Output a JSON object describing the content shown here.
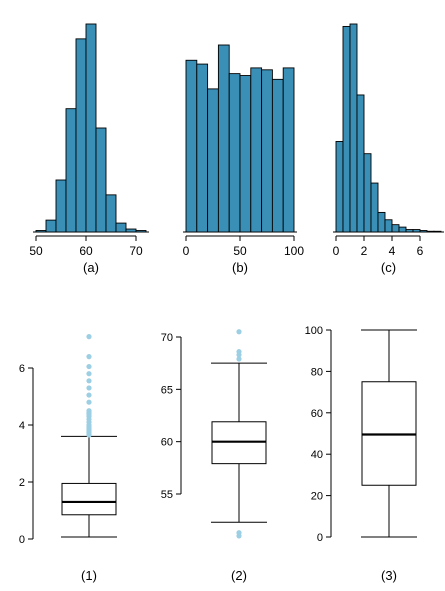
{
  "colors": {
    "bar_fill": "#3a8fb7",
    "bar_stroke": "#000000",
    "outlier": "#9ccfe3",
    "axis": "#000000"
  },
  "chart_data": [
    {
      "type": "bar",
      "subtype": "histogram",
      "panel_label": "(a)",
      "bin_edges": [
        50,
        52,
        54,
        56,
        58,
        60,
        62,
        64,
        66,
        68,
        70,
        72
      ],
      "values": [
        1,
        8,
        35,
        83,
        130,
        140,
        70,
        25,
        6,
        2,
        1
      ],
      "xlim": [
        49,
        73
      ],
      "xticks": [
        "50",
        "60",
        "70"
      ],
      "ylim": [
        0,
        140
      ],
      "grid": false
    },
    {
      "type": "bar",
      "subtype": "histogram",
      "panel_label": "(b)",
      "bin_edges": [
        0,
        10,
        20,
        30,
        40,
        50,
        60,
        70,
        80,
        90,
        100
      ],
      "values": [
        90,
        88,
        75,
        98,
        83,
        82,
        86,
        85,
        80,
        86
      ],
      "xlim": [
        -3,
        103
      ],
      "xticks": [
        "0",
        "50",
        "100"
      ],
      "ylim": [
        0,
        98
      ],
      "grid": false
    },
    {
      "type": "bar",
      "subtype": "histogram",
      "panel_label": "(c)",
      "bin_edges": [
        0,
        0.5,
        1,
        1.5,
        2,
        2.5,
        3,
        3.5,
        4,
        4.5,
        5,
        5.5,
        6,
        6.5,
        7,
        7.5
      ],
      "values": [
        37,
        84,
        85,
        56,
        32,
        20,
        8,
        5,
        3,
        2,
        1,
        1,
        0.6,
        0.3,
        0.3
      ],
      "xlim": [
        -0.3,
        7.6
      ],
      "xticks": [
        "0",
        "2",
        "4",
        "6"
      ],
      "ylim": [
        0,
        85
      ],
      "grid": false
    },
    {
      "type": "box",
      "panel_label": "(1)",
      "yticks": [
        "0",
        "2",
        "4",
        "6"
      ],
      "ylim": [
        0,
        6
      ],
      "whisker_low": 0.07,
      "q1": 0.85,
      "median": 1.3,
      "q3": 1.95,
      "whisker_high": 3.6,
      "outliers": [
        3.65,
        3.7,
        3.75,
        3.8,
        3.85,
        3.9,
        3.95,
        4.0,
        4.1,
        4.2,
        4.3,
        4.35,
        4.4,
        4.45,
        4.5,
        4.8,
        5.05,
        5.3,
        5.55,
        5.8,
        6.05,
        6.4,
        7.1
      ]
    },
    {
      "type": "box",
      "panel_label": "(2)",
      "yticks": [
        "55",
        "60",
        "65",
        "70"
      ],
      "ylim": [
        55,
        70
      ],
      "whisker_low": 52.3,
      "q1": 57.9,
      "median": 60.0,
      "q3": 61.9,
      "whisker_high": 67.5,
      "outliers": [
        51.0,
        51.3,
        67.9,
        68.3,
        68.6,
        70.5
      ]
    },
    {
      "type": "box",
      "panel_label": "(3)",
      "yticks": [
        "0",
        "20",
        "40",
        "60",
        "80",
        "100"
      ],
      "ylim": [
        0,
        100
      ],
      "whisker_low": 0,
      "q1": 25,
      "median": 49.5,
      "q3": 75,
      "whisker_high": 100,
      "outliers": []
    }
  ]
}
